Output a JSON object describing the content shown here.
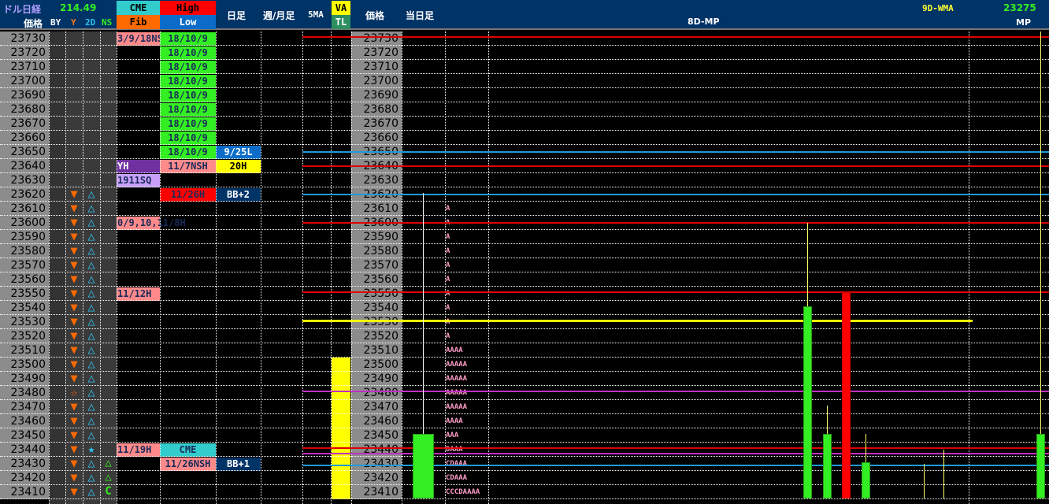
{
  "header": {
    "title": "ドル日経",
    "title_value": "214.49",
    "price_label": "価格",
    "by_label": "BY",
    "y_label": "Y",
    "twod_label": "2D",
    "ns_label": "NS",
    "cme_label": "CME",
    "fib_label": "Fib",
    "high_label": "High",
    "low_label": "Low",
    "daily_label": "日足",
    "weekly_label": "週/月足",
    "ma5_label": "5MA",
    "va_label": "VA",
    "tl_label": "TL",
    "price2_label": "価格",
    "today_label": "当日足",
    "mp8_label": "8D-MP",
    "wma_label": "9D-WMA",
    "wma_value": "23275",
    "mp_label": "MP"
  },
  "colors": {
    "header_bg": "#003366",
    "red": "#e00000",
    "blue": "#1e9bd7",
    "yellow": "#ffff00",
    "magenta": "#c030c0",
    "green": "#33ee22",
    "pink": "#ff8080",
    "orange": "#ff6a00",
    "cyan": "#30c0f0"
  },
  "rows": [
    {
      "price": "23730",
      "cme": {
        "text": "3/9/18NS",
        "bg": "#ff8a8a"
      },
      "hl": {
        "text": "18/10/9",
        "bg": "#33ee22"
      }
    },
    {
      "price": "23720",
      "hl": {
        "text": "18/10/9",
        "bg": "#33ee22"
      }
    },
    {
      "price": "23710",
      "hl": {
        "text": "18/10/9",
        "bg": "#33ee22"
      }
    },
    {
      "price": "23700",
      "hl": {
        "text": "18/10/9",
        "bg": "#33ee22"
      }
    },
    {
      "price": "23690",
      "hl": {
        "text": "18/10/9",
        "bg": "#33ee22"
      }
    },
    {
      "price": "23680",
      "hl": {
        "text": "18/10/9",
        "bg": "#33ee22"
      }
    },
    {
      "price": "23670",
      "hl": {
        "text": "18/10/9",
        "bg": "#33ee22"
      }
    },
    {
      "price": "23660",
      "hl": {
        "text": "18/10/9",
        "bg": "#33ee22"
      }
    },
    {
      "price": "23650",
      "hl": {
        "text": "18/10/9",
        "bg": "#33ee22"
      },
      "daily": {
        "text": "9/25L",
        "bg": "#0a6cc8",
        "fg": "#fff"
      }
    },
    {
      "price": "23640",
      "cme": {
        "text": "YH",
        "bg": "#7030a0",
        "fg": "#fff"
      },
      "hl": {
        "text": "11/7NSH",
        "bg": "#ff8a8a"
      },
      "daily": {
        "text": "20H",
        "bg": "#ffff00"
      }
    },
    {
      "price": "23630",
      "cme": {
        "text": "1911SQ",
        "bg": "#c8a0f8"
      }
    },
    {
      "price": "23620",
      "y": "▼",
      "d2": "△",
      "hl": {
        "text": "11/26H",
        "bg": "#ff0000"
      },
      "daily": {
        "text": "BB+2",
        "bg": "#003366",
        "fg": "#fff"
      }
    },
    {
      "price": "23610",
      "y": "▼",
      "d2": "△",
      "tpo": "A"
    },
    {
      "price": "23600",
      "y": "▼",
      "d2": "△",
      "cme": {
        "text": "0/9,10,11/8H",
        "bg": "#ff8a8a"
      },
      "tpo": "A"
    },
    {
      "price": "23590",
      "y": "▼",
      "d2": "△",
      "tpo": "A"
    },
    {
      "price": "23580",
      "y": "▼",
      "d2": "△",
      "tpo": "A"
    },
    {
      "price": "23570",
      "y": "▼",
      "d2": "△",
      "tpo": "A"
    },
    {
      "price": "23560",
      "y": "▼",
      "d2": "△",
      "tpo": "A"
    },
    {
      "price": "23550",
      "y": "▼",
      "d2": "△",
      "cme": {
        "text": "11/12H",
        "bg": "#ff8a8a"
      },
      "tpo": "A"
    },
    {
      "price": "23540",
      "y": "▼",
      "d2": "△",
      "tpo": "A"
    },
    {
      "price": "23530",
      "y": "▼",
      "d2": "△",
      "tpo": "A"
    },
    {
      "price": "23520",
      "y": "▼",
      "d2": "△",
      "tpo": "A"
    },
    {
      "price": "23510",
      "y": "▼",
      "d2": "△",
      "tpo": "AAAA"
    },
    {
      "price": "23500",
      "y": "▼",
      "d2": "△",
      "tpo": "AAAAA",
      "va": true
    },
    {
      "price": "23490",
      "y": "▼",
      "d2": "△",
      "tpo": "AAAAA",
      "va": true
    },
    {
      "price": "23480",
      "y": "☆",
      "d2": "△",
      "tpo": "AAAAA",
      "va": true
    },
    {
      "price": "23470",
      "y": "▼",
      "d2": "△",
      "tpo": "AAAAA",
      "va": true
    },
    {
      "price": "23460",
      "y": "▼",
      "d2": "△",
      "tpo": "AAAA",
      "va": true
    },
    {
      "price": "23450",
      "y": "▼",
      "d2": "△",
      "tpo": "AAA",
      "va": true
    },
    {
      "price": "23440",
      "y": "▼",
      "d2": "★",
      "cme": {
        "text": "11/19H",
        "bg": "#ff8a8a"
      },
      "hl": {
        "text": "CME",
        "bg": "#33cccc"
      },
      "tpo": "DAAA",
      "va": true
    },
    {
      "price": "23430",
      "y": "▼",
      "d2": "△",
      "ns": "△",
      "hl": {
        "text": "11/26NSH",
        "bg": "#ff8a8a"
      },
      "daily": {
        "text": "BB+1",
        "bg": "#003366",
        "fg": "#fff"
      },
      "tpo": "CDAAA",
      "va": true
    },
    {
      "price": "23420",
      "y": "▼",
      "d2": "△",
      "ns": "△",
      "tpo": "CDAAA",
      "va": true
    },
    {
      "price": "23410",
      "y": "▼",
      "d2": "△",
      "ns": "C",
      "tpo": "CCCDAAAA",
      "va": true
    }
  ],
  "levels": [
    {
      "price": 23731,
      "color": "#e00000",
      "end": "full"
    },
    {
      "price": 23650,
      "color": "#1e9bd7",
      "end": "full"
    },
    {
      "price": 23640,
      "color": "#e00000",
      "end": "full"
    },
    {
      "price": 23620,
      "color": "#1e9bd7",
      "end": "full"
    },
    {
      "price": 23600,
      "color": "#e00000",
      "end": "full"
    },
    {
      "price": 23551,
      "color": "#e00000",
      "end": "full"
    },
    {
      "price": 23531,
      "color": "#ffff00",
      "end": "partial"
    },
    {
      "price": 23481,
      "color": "#c030c0",
      "end": "full"
    },
    {
      "price": 23441,
      "color": "#e00000",
      "end": "full"
    },
    {
      "price": 23437,
      "color": "#c030c0",
      "end": "full"
    },
    {
      "price": 23429,
      "color": "#1e9bd7",
      "end": "full"
    }
  ],
  "today_candle": {
    "high": 23621,
    "body_top": 23451,
    "body_bottom": 23400,
    "color": "#33ee22"
  },
  "mp_candles": [
    {
      "high": 23600,
      "body_top": 23541,
      "body_bottom": 23400,
      "color": "#33ee22"
    },
    {
      "high": 23471,
      "body_top": 23451,
      "body_bottom": 23400,
      "color": "#33ee22"
    },
    {
      "high": 23551,
      "body_top": 23551,
      "body_bottom": 23400,
      "color": "#ff0000"
    },
    {
      "high": 23451,
      "body_top": 23431,
      "body_bottom": 23400,
      "color": "#33ee22"
    },
    {
      "high": 23430,
      "body_top": null,
      "body_bottom": 23400,
      "color": "#ffff66"
    },
    {
      "high": 23440,
      "body_top": null,
      "body_bottom": 23400,
      "color": "#ffff66"
    },
    {
      "high": 23750,
      "body_top": 23451,
      "body_bottom": 23400,
      "color": "#33ee22"
    }
  ]
}
